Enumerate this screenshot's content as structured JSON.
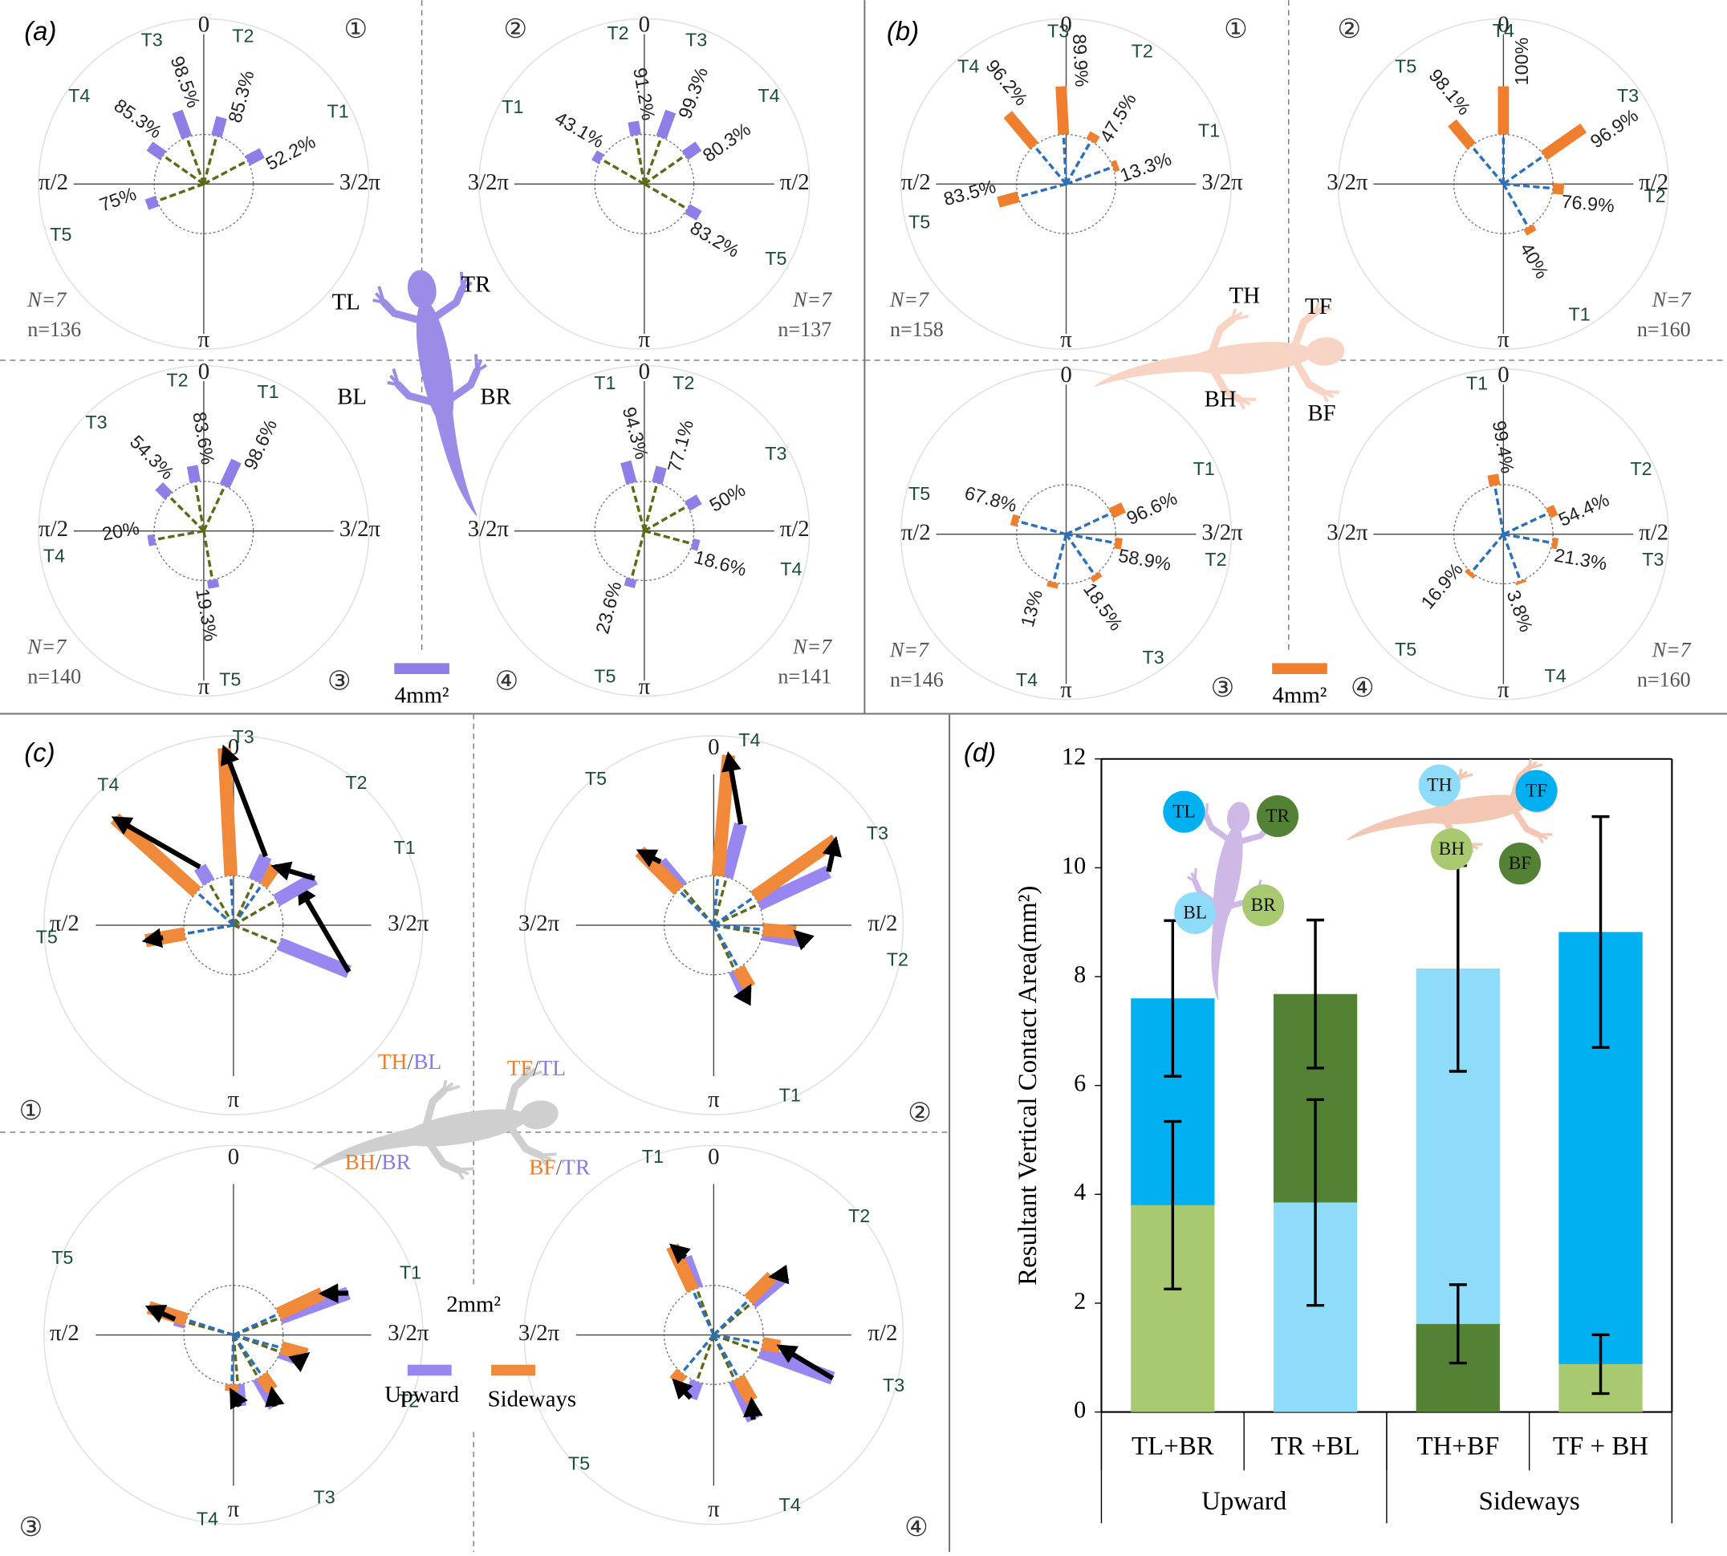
{
  "panels": {
    "a": {
      "label": "(a)",
      "gecko_labels": [
        "TL",
        "TR",
        "BL",
        "BR"
      ],
      "legend": {
        "label": "4mm²",
        "value": 4
      },
      "subplots": [
        {
          "marker": "①",
          "axes": [
            "0",
            "3/2π",
            "π",
            "π/2"
          ],
          "N": "N=7",
          "n": "n=136",
          "toes": [
            {
              "label": "T1",
              "pct": "52.2%",
              "angle": 62,
              "area": 1.2
            },
            {
              "label": "T2",
              "pct": "85.3%",
              "angle": 15,
              "area": 1.4
            },
            {
              "label": "T3",
              "pct": "98.5%",
              "angle": -20,
              "area": 2.0
            },
            {
              "label": "T4",
              "pct": "85.3%",
              "angle": -55,
              "area": 1.2
            },
            {
              "label": "T5",
              "pct": "75%",
              "angle": -110,
              "area": 0.8
            }
          ]
        },
        {
          "marker": "②",
          "axes": [
            "0",
            "π/2",
            "π",
            "3/2π"
          ],
          "N": "N=7",
          "n": "n=137",
          "toes": [
            {
              "label": "T1",
              "pct": "43.1%",
              "angle": -60,
              "area": 0.6
            },
            {
              "label": "T2",
              "pct": "91.2%",
              "angle": -10,
              "area": 1.0
            },
            {
              "label": "T3",
              "pct": "99.3%",
              "angle": 20,
              "area": 2.0
            },
            {
              "label": "T4",
              "pct": "80.3%",
              "angle": 55,
              "area": 1.2
            },
            {
              "label": "T5",
              "pct": "83.2%",
              "angle": 120,
              "area": 1.0
            }
          ]
        },
        {
          "marker": "③",
          "axes": [
            "0",
            "3/2π",
            "π",
            "π/2"
          ],
          "N": "N=7",
          "n": "n=140",
          "toes": [
            {
              "label": "T1",
              "pct": "98.6%",
              "angle": 25,
              "area": 2.0
            },
            {
              "label": "T2",
              "pct": "83.6%",
              "angle": -10,
              "area": 1.2
            },
            {
              "label": "T3",
              "pct": "54.3%",
              "angle": -45,
              "area": 1.0
            },
            {
              "label": "T4",
              "pct": "20%",
              "angle": -100,
              "area": 0.5
            },
            {
              "label": "T5",
              "pct": "19.3%",
              "angle": 170,
              "area": 0.6
            }
          ]
        },
        {
          "marker": "④",
          "axes": [
            "0",
            "π/2",
            "π",
            "3/2π"
          ],
          "N": "N=7",
          "n": "n=141",
          "toes": [
            {
              "label": "T1",
              "pct": "94.3%",
              "angle": -15,
              "area": 1.6
            },
            {
              "label": "T2",
              "pct": "77.1%",
              "angle": 15,
              "area": 1.2
            },
            {
              "label": "T3",
              "pct": "50%",
              "angle": 60,
              "area": 1.0
            },
            {
              "label": "T4",
              "pct": "18.6%",
              "angle": 105,
              "area": 0.5
            },
            {
              "label": "T5",
              "pct": "23.6%",
              "angle": -165,
              "area": 0.6
            }
          ]
        }
      ]
    },
    "b": {
      "label": "(b)",
      "gecko_labels": [
        "TH",
        "TF",
        "BH",
        "BF"
      ],
      "legend": {
        "label": "4mm²",
        "value": 4
      },
      "subplots": [
        {
          "marker": "①",
          "axes": [
            "0",
            "3/2π",
            "π",
            "π/2"
          ],
          "N": "N=7",
          "n": "n=158",
          "toes": [
            {
              "label": "T1",
              "pct": "13.3%",
              "angle": 70,
              "area": 0.4
            },
            {
              "label": "T2",
              "pct": "47.5%",
              "angle": 30,
              "area": 0.6
            },
            {
              "label": "T3",
              "pct": "89.9%",
              "angle": -3,
              "area": 3.5
            },
            {
              "label": "T4",
              "pct": "96.2%",
              "angle": -40,
              "area": 3.0
            },
            {
              "label": "T5",
              "pct": "83.5%",
              "angle": -105,
              "area": 1.5
            }
          ]
        },
        {
          "marker": "②",
          "axes": [
            "0",
            "π/2",
            "π",
            "3/2π"
          ],
          "N": "N=7",
          "n": "n=160",
          "toes": [
            {
              "label": "T1",
              "pct": "40%",
              "angle": 150,
              "area": 0.5
            },
            {
              "label": "T2",
              "pct": "76.9%",
              "angle": 95,
              "area": 0.8
            },
            {
              "label": "T3",
              "pct": "96.9%",
              "angle": 55,
              "area": 3.5
            },
            {
              "label": "T4",
              "pct": "100%",
              "angle": 0,
              "area": 3.5
            },
            {
              "label": "T5",
              "pct": "98.1%",
              "angle": -40,
              "area": 2.2
            }
          ]
        },
        {
          "marker": "③",
          "axes": [
            "0",
            "3/2π",
            "π",
            "π/2"
          ],
          "N": "N=7",
          "n": "n=146",
          "toes": [
            {
              "label": "T1",
              "pct": "96.6%",
              "angle": 65,
              "area": 1.0
            },
            {
              "label": "T2",
              "pct": "58.9%",
              "angle": 100,
              "area": 0.5
            },
            {
              "label": "T3",
              "pct": "18.5%",
              "angle": 145,
              "area": 0.4
            },
            {
              "label": "T4",
              "pct": "13%",
              "angle": -165,
              "area": 0.4
            },
            {
              "label": "T5",
              "pct": "67.8%",
              "angle": -75,
              "area": 0.5
            }
          ]
        },
        {
          "marker": "④",
          "axes": [
            "0",
            "π/2",
            "π",
            "3/2π"
          ],
          "N": "N=7",
          "n": "n=160",
          "toes": [
            {
              "label": "T1",
              "pct": "99.4%",
              "angle": -10,
              "area": 0.8
            },
            {
              "label": "T2",
              "pct": "54.4%",
              "angle": 65,
              "area": 0.6
            },
            {
              "label": "T3",
              "pct": "21.3%",
              "angle": 100,
              "area": 0.4
            },
            {
              "label": "T4",
              "pct": "3.8%",
              "angle": 160,
              "area": 0.2
            },
            {
              "label": "T5",
              "pct": "16.9%",
              "angle": -140,
              "area": 0.3
            }
          ]
        }
      ]
    },
    "c": {
      "label": "(c)",
      "sep": "/",
      "gecko_labels": [
        {
          "a": "TH",
          "b": "BL"
        },
        {
          "a": "TF",
          "b": "TL"
        },
        {
          "a": "BH",
          "b": "BR"
        },
        {
          "a": "BF",
          "b": "TR"
        }
      ],
      "legend": {
        "label": "2mm²",
        "value": 2,
        "upward": "Upward",
        "sideways": "Sideways"
      },
      "subplots": [
        {
          "marker": "①",
          "axes": [
            "0",
            "3/2π",
            "π",
            "π/2"
          ],
          "toes": [
            {
              "label": "T1",
              "up_angle": 112,
              "up_area": 3.4,
              "side_angle": 60,
              "side_area": 1.2
            },
            {
              "label": "T2",
              "up_angle": 60,
              "up_area": 2.0,
              "side_angle": 35,
              "side_area": 1.0
            },
            {
              "label": "T3",
              "up_angle": 25,
              "up_area": 1.2,
              "side_angle": -3,
              "side_area": 5.8
            },
            {
              "label": "T4",
              "up_angle": -30,
              "up_area": 0.8,
              "side_angle": -48,
              "side_area": 5.0
            },
            {
              "label": "T5",
              "up_angle": -100,
              "up_area": 1.0,
              "side_angle": -100,
              "side_area": 1.8
            }
          ]
        },
        {
          "marker": "②",
          "axes": [
            "0",
            "π/2",
            "π",
            "3/2π"
          ],
          "toes": [
            {
              "label": "T1",
              "up_angle": 155,
              "up_area": 1.2,
              "side_angle": 150,
              "side_area": 1.0
            },
            {
              "label": "T2",
              "up_angle": 100,
              "up_area": 2.0,
              "side_angle": 95,
              "side_area": 1.5
            },
            {
              "label": "T3",
              "up_angle": 65,
              "up_area": 3.5,
              "side_angle": 55,
              "side_area": 4.5
            },
            {
              "label": "T4",
              "up_angle": 15,
              "up_area": 2.5,
              "side_angle": 5,
              "side_area": 5.5
            },
            {
              "label": "T5",
              "up_angle": -40,
              "up_area": 1.5,
              "side_angle": -45,
              "side_area": 2.5
            }
          ]
        },
        {
          "marker": "③",
          "axes": [
            "0",
            "3/2π",
            "π",
            "π/2"
          ],
          "toes": [
            {
              "label": "T1",
              "up_angle": 70,
              "up_area": 3.3,
              "side_angle": 65,
              "side_area": 2.2
            },
            {
              "label": "T2",
              "up_angle": 110,
              "up_area": 1.0,
              "side_angle": 105,
              "side_area": 1.2
            },
            {
              "label": "T3",
              "up_angle": 150,
              "up_area": 1.5,
              "side_angle": 145,
              "side_area": 0.8
            },
            {
              "label": "T4",
              "up_angle": 175,
              "up_area": 1.0,
              "side_angle": -178,
              "side_area": 0.3
            },
            {
              "label": "T5",
              "up_angle": -75,
              "up_area": 0.5,
              "side_angle": -72,
              "side_area": 1.8
            }
          ]
        },
        {
          "marker": "④",
          "axes": [
            "0",
            "π/2",
            "π",
            "3/2π"
          ],
          "toes": [
            {
              "label": "T1",
              "up_angle": -20,
              "up_area": 1.5,
              "side_angle": -25,
              "side_area": 2.2
            },
            {
              "label": "T2",
              "up_angle": 50,
              "up_area": 2.0,
              "side_angle": 45,
              "side_area": 1.5
            },
            {
              "label": "T3",
              "up_angle": 110,
              "up_area": 3.5,
              "side_angle": 100,
              "side_area": 0.8
            },
            {
              "label": "T4",
              "up_angle": 155,
              "up_area": 2.0,
              "side_angle": 150,
              "side_area": 1.2
            },
            {
              "label": "T5",
              "up_angle": -160,
              "up_area": 0.8,
              "side_angle": -140,
              "side_area": 0.5
            }
          ]
        }
      ]
    }
  },
  "chart_data": {
    "type": "bar",
    "stacked": true,
    "panel_label": "(d)",
    "ylabel": "Resultant Vertical Contact Area(mm²)",
    "categories": [
      "TL+BR",
      "TR +BL",
      "TH+BF",
      "TF + BH"
    ],
    "groups": [
      {
        "label": "Upward",
        "span": 2
      },
      {
        "label": "Sideways",
        "span": 2
      }
    ],
    "series": [
      {
        "colors": [
          "#a9c971",
          "#8fdcfa",
          "#548235",
          "#a9c971"
        ],
        "values": [
          3.8,
          3.85,
          1.62,
          0.88
        ],
        "errors": [
          1.54,
          1.89,
          0.72,
          0.54
        ]
      },
      {
        "colors": [
          "#00b0f0",
          "#548235",
          "#8fdcfa",
          "#00b0f0"
        ],
        "values": [
          3.8,
          3.83,
          6.53,
          7.94
        ],
        "errors": [
          1.43,
          1.36,
          1.89,
          2.12
        ]
      }
    ],
    "ylim": [
      0,
      12
    ],
    "yticks": [
      0,
      2,
      4,
      6,
      8,
      10,
      12
    ],
    "markers": [
      {
        "label": "TL",
        "color": "#00b0f0"
      },
      {
        "label": "TR",
        "color": "#548235"
      },
      {
        "label": "BL",
        "color": "#8fdcfa"
      },
      {
        "label": "BR",
        "color": "#a9c971"
      },
      {
        "label": "TH",
        "color": "#8fdcfa"
      },
      {
        "label": "TF",
        "color": "#00b0f0"
      },
      {
        "label": "BH",
        "color": "#a9c971"
      },
      {
        "label": "BF",
        "color": "#548235"
      }
    ]
  }
}
